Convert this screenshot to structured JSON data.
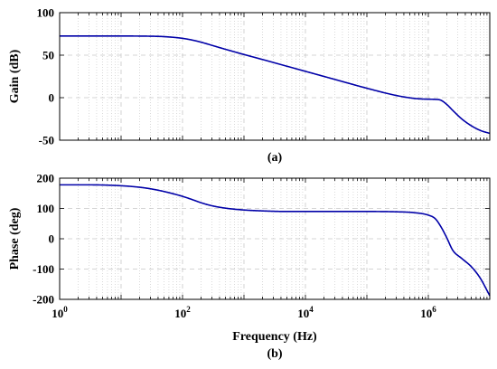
{
  "chart_data": [
    {
      "panel_label": "(a)",
      "type": "line",
      "xscale": "log",
      "xlim": [
        1,
        10000000
      ],
      "ylim": [
        -50,
        100
      ],
      "ylabel": "Gain (dB)",
      "xlabel": "",
      "x_tick_labels_shown": false,
      "y_ticks": [
        -50,
        0,
        50,
        100
      ],
      "grid": true,
      "line_color": "#0000a8",
      "series": [
        {
          "x": [
            1,
            3,
            10,
            30,
            50,
            100,
            150,
            200,
            300,
            500,
            1000,
            2000,
            5000,
            10000,
            30000,
            100000,
            300000,
            600000,
            1000000,
            1300000,
            1600000,
            2000000,
            2500000,
            3500000,
            5000000,
            7000000,
            10000000
          ],
          "values": [
            72.5,
            72.5,
            72.5,
            72.3,
            71.8,
            69.8,
            67.5,
            65.3,
            61.6,
            56.9,
            50.8,
            44.9,
            37.0,
            31.0,
            21.5,
            11.1,
            2.6,
            -0.9,
            -1.8,
            -2.0,
            -3.0,
            -8.0,
            -15.0,
            -25.0,
            -33.0,
            -38.5,
            -42.0
          ]
        }
      ]
    },
    {
      "panel_label": "(b)",
      "type": "line",
      "xscale": "log",
      "xlim": [
        1,
        10000000
      ],
      "ylim": [
        -200,
        200
      ],
      "ylabel": "Phase (deg)",
      "xlabel": "Frequency (Hz)",
      "x_tick_labels_shown": true,
      "x_ticks": [
        {
          "value": 1,
          "base": "10",
          "exp": "0"
        },
        {
          "value": 100,
          "base": "10",
          "exp": "2"
        },
        {
          "value": 10000,
          "base": "10",
          "exp": "4"
        },
        {
          "value": 1000000,
          "base": "10",
          "exp": "6"
        }
      ],
      "y_ticks": [
        -200,
        -100,
        0,
        100,
        200
      ],
      "grid": true,
      "line_color": "#0000a8",
      "series": [
        {
          "x": [
            1,
            3,
            10,
            20,
            30,
            50,
            100,
            150,
            200,
            300,
            500,
            1000,
            2000,
            5000,
            10000,
            30000,
            100000,
            300000,
            600000,
            1000000,
            1300000,
            1600000,
            2000000,
            2500000,
            3500000,
            5000000,
            7000000,
            10000000
          ],
          "values": [
            178,
            178,
            175,
            170,
            165,
            156,
            140,
            128,
            119,
            109,
            101,
            95,
            92,
            90,
            90,
            90,
            90,
            89,
            86,
            78,
            66,
            40,
            3,
            -38,
            -65,
            -92,
            -130,
            -188
          ]
        }
      ]
    }
  ]
}
